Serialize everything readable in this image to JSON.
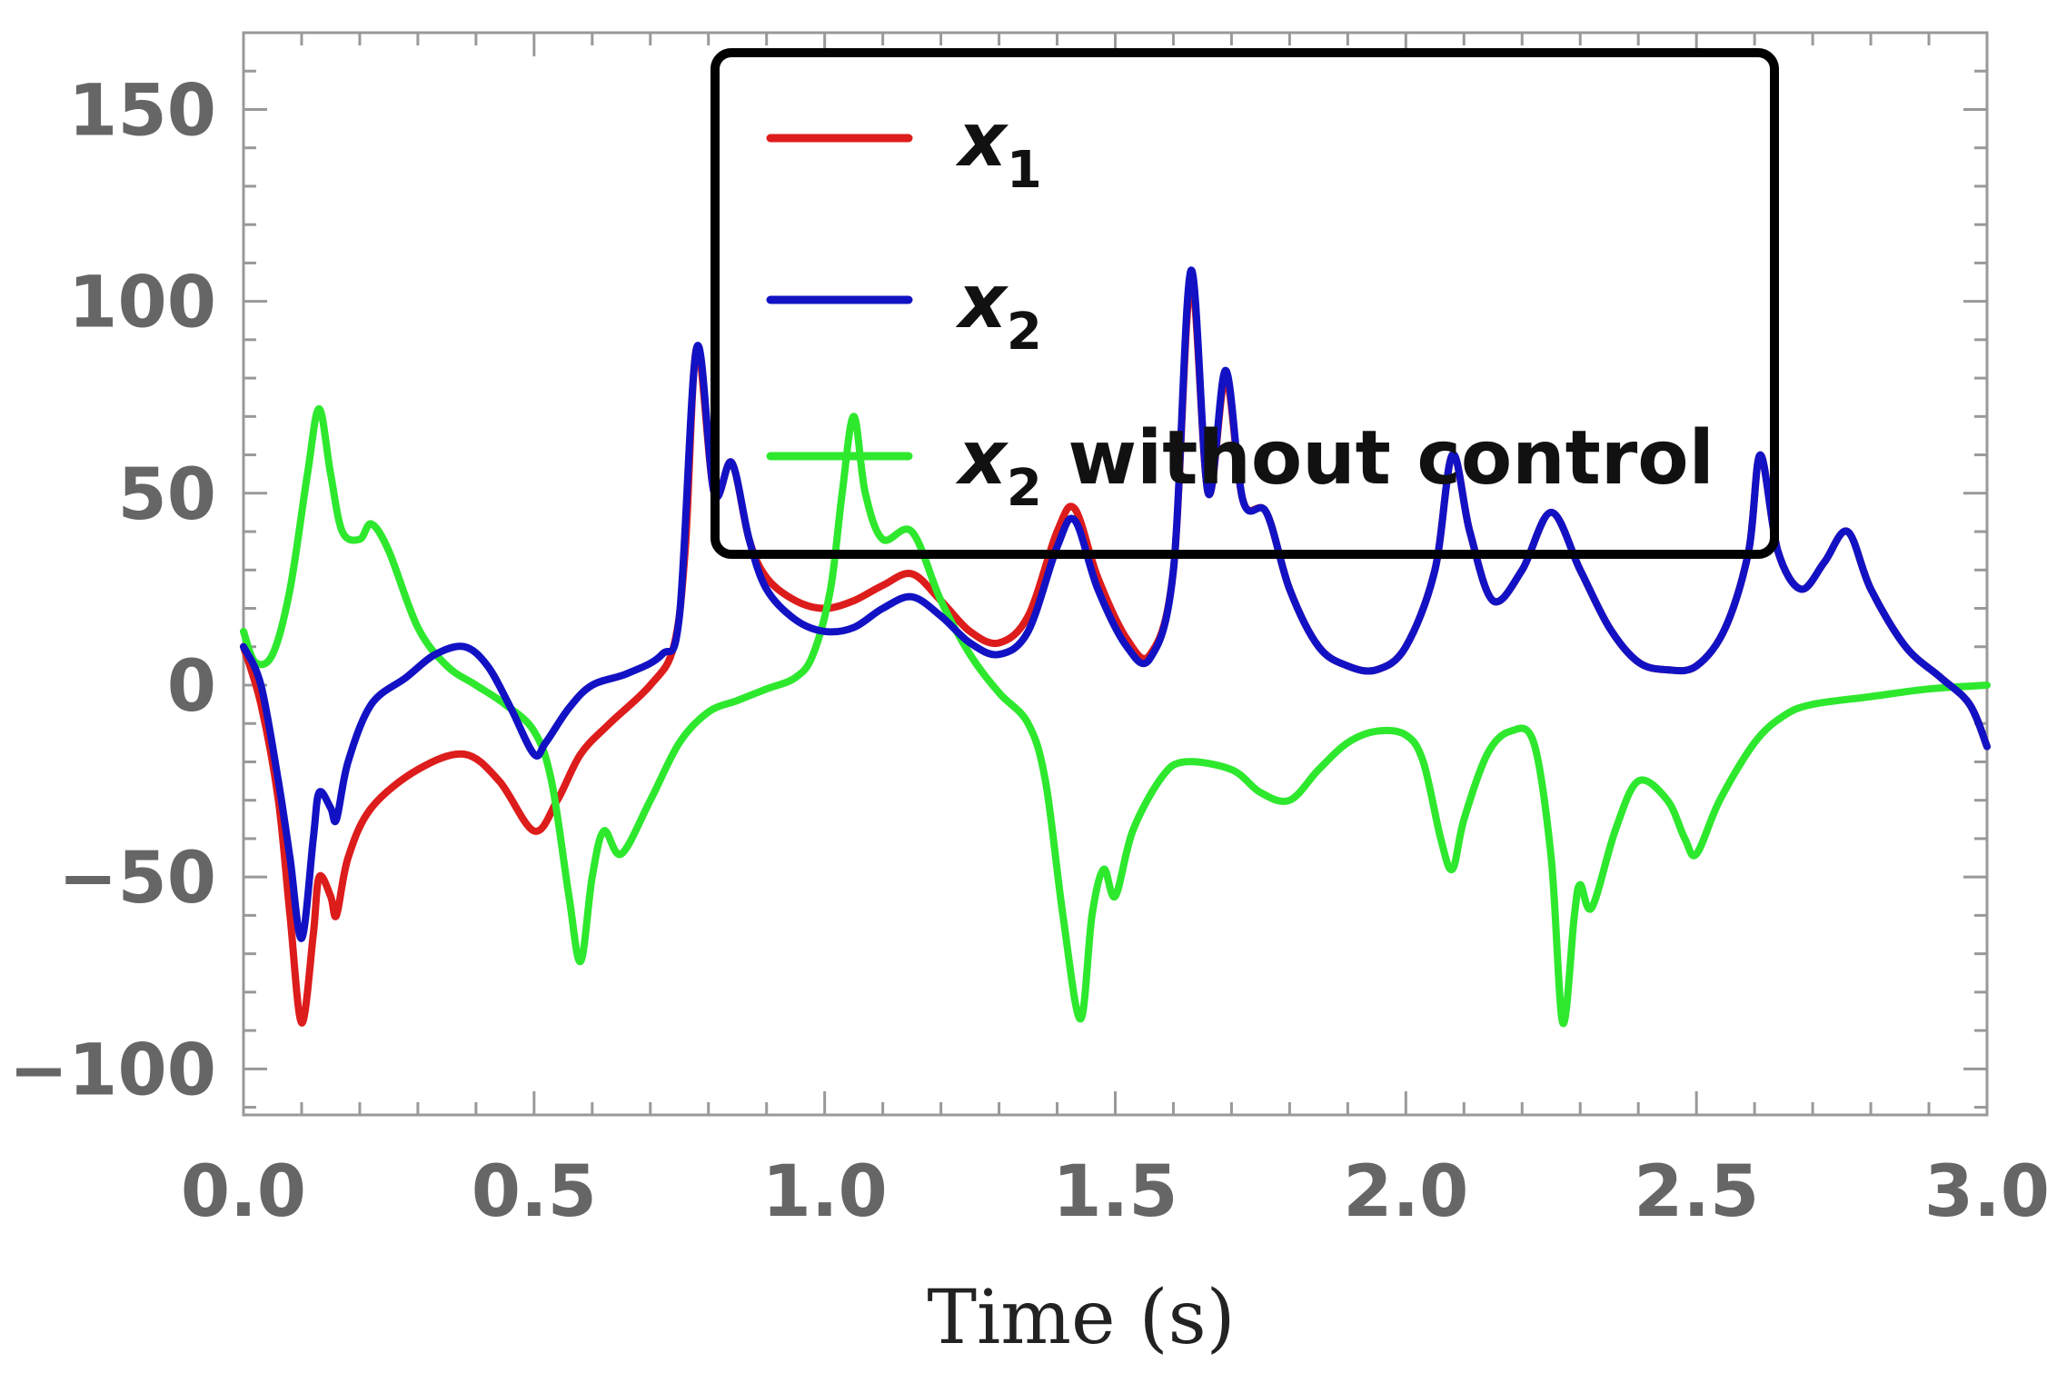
{
  "chart_data": {
    "type": "line",
    "title": "",
    "xlabel": "Time (s)",
    "ylabel": "",
    "xlim": [
      0,
      3
    ],
    "ylim": [
      -112,
      170
    ],
    "x_ticks": [
      0.0,
      0.5,
      1.0,
      1.5,
      2.0,
      2.5,
      3.0
    ],
    "x_tick_labels": [
      "0.0",
      "0.5",
      "1.0",
      "1.5",
      "2.0",
      "2.5",
      "3.0"
    ],
    "y_ticks": [
      -100,
      -50,
      0,
      50,
      100,
      150
    ],
    "y_tick_labels": [
      "−100",
      "−50",
      "0",
      "50",
      "100",
      "150"
    ],
    "legend": {
      "position": "top-right"
    },
    "series": [
      {
        "name": "x1",
        "legend_main": "x",
        "legend_sub": "1",
        "legend_rest": "",
        "color": "#dd1c1c",
        "points": [
          [
            0,
            10
          ],
          [
            0.03,
            -5
          ],
          [
            0.06,
            -30
          ],
          [
            0.08,
            -60
          ],
          [
            0.1,
            -88
          ],
          [
            0.12,
            -65
          ],
          [
            0.13,
            -50
          ],
          [
            0.15,
            -55
          ],
          [
            0.16,
            -60
          ],
          [
            0.18,
            -45
          ],
          [
            0.22,
            -32
          ],
          [
            0.3,
            -22
          ],
          [
            0.38,
            -18
          ],
          [
            0.44,
            -25
          ],
          [
            0.5,
            -38
          ],
          [
            0.54,
            -30
          ],
          [
            0.58,
            -18
          ],
          [
            0.63,
            -10
          ],
          [
            0.7,
            0
          ],
          [
            0.74,
            10
          ],
          [
            0.76,
            35
          ],
          [
            0.78,
            88
          ],
          [
            0.81,
            50
          ],
          [
            0.84,
            58
          ],
          [
            0.87,
            38
          ],
          [
            0.9,
            28
          ],
          [
            0.95,
            22
          ],
          [
            1.0,
            20
          ],
          [
            1.05,
            22
          ],
          [
            1.1,
            26
          ],
          [
            1.15,
            29
          ],
          [
            1.2,
            22
          ],
          [
            1.25,
            14
          ],
          [
            1.3,
            11
          ],
          [
            1.35,
            18
          ],
          [
            1.4,
            40
          ],
          [
            1.43,
            46
          ],
          [
            1.47,
            28
          ],
          [
            1.52,
            12
          ],
          [
            1.56,
            8
          ],
          [
            1.6,
            30
          ],
          [
            1.63,
            105
          ],
          [
            1.66,
            50
          ],
          [
            1.69,
            80
          ],
          [
            1.72,
            48
          ],
          [
            1.76,
            45
          ],
          [
            1.8,
            25
          ],
          [
            1.85,
            10
          ],
          [
            1.9,
            5
          ],
          [
            1.95,
            4
          ],
          [
            2.0,
            10
          ],
          [
            2.05,
            30
          ],
          [
            2.08,
            60
          ],
          [
            2.11,
            40
          ],
          [
            2.15,
            22
          ],
          [
            2.2,
            30
          ],
          [
            2.25,
            45
          ],
          [
            2.3,
            30
          ],
          [
            2.35,
            15
          ],
          [
            2.4,
            6
          ],
          [
            2.45,
            4
          ],
          [
            2.5,
            5
          ],
          [
            2.55,
            15
          ],
          [
            2.59,
            35
          ],
          [
            2.61,
            60
          ],
          [
            2.64,
            35
          ],
          [
            2.68,
            25
          ],
          [
            2.72,
            32
          ],
          [
            2.76,
            40
          ],
          [
            2.8,
            25
          ],
          [
            2.86,
            10
          ],
          [
            2.92,
            2
          ],
          [
            2.97,
            -5
          ],
          [
            3.0,
            -16
          ]
        ]
      },
      {
        "name": "x2",
        "legend_main": "x",
        "legend_sub": "2",
        "legend_rest": "",
        "color": "#1212c4",
        "points": [
          [
            0,
            10
          ],
          [
            0.03,
            0
          ],
          [
            0.06,
            -25
          ],
          [
            0.08,
            -45
          ],
          [
            0.1,
            -66
          ],
          [
            0.12,
            -40
          ],
          [
            0.13,
            -28
          ],
          [
            0.15,
            -32
          ],
          [
            0.16,
            -35
          ],
          [
            0.18,
            -20
          ],
          [
            0.22,
            -5
          ],
          [
            0.28,
            2
          ],
          [
            0.33,
            8
          ],
          [
            0.38,
            10
          ],
          [
            0.42,
            5
          ],
          [
            0.46,
            -6
          ],
          [
            0.5,
            -18
          ],
          [
            0.52,
            -15
          ],
          [
            0.56,
            -6
          ],
          [
            0.6,
            0
          ],
          [
            0.66,
            3
          ],
          [
            0.72,
            8
          ],
          [
            0.75,
            18
          ],
          [
            0.78,
            88
          ],
          [
            0.81,
            50
          ],
          [
            0.84,
            58
          ],
          [
            0.87,
            38
          ],
          [
            0.9,
            25
          ],
          [
            0.95,
            17
          ],
          [
            1.0,
            14
          ],
          [
            1.05,
            15
          ],
          [
            1.1,
            20
          ],
          [
            1.15,
            23
          ],
          [
            1.2,
            18
          ],
          [
            1.25,
            11
          ],
          [
            1.3,
            8
          ],
          [
            1.35,
            14
          ],
          [
            1.4,
            36
          ],
          [
            1.43,
            43
          ],
          [
            1.47,
            25
          ],
          [
            1.52,
            10
          ],
          [
            1.56,
            7
          ],
          [
            1.6,
            30
          ],
          [
            1.63,
            108
          ],
          [
            1.66,
            50
          ],
          [
            1.69,
            82
          ],
          [
            1.72,
            48
          ],
          [
            1.76,
            45
          ],
          [
            1.8,
            25
          ],
          [
            1.85,
            10
          ],
          [
            1.9,
            5
          ],
          [
            1.95,
            4
          ],
          [
            2.0,
            10
          ],
          [
            2.05,
            30
          ],
          [
            2.08,
            60
          ],
          [
            2.11,
            40
          ],
          [
            2.15,
            22
          ],
          [
            2.2,
            30
          ],
          [
            2.25,
            45
          ],
          [
            2.3,
            30
          ],
          [
            2.35,
            15
          ],
          [
            2.4,
            6
          ],
          [
            2.45,
            4
          ],
          [
            2.5,
            5
          ],
          [
            2.55,
            15
          ],
          [
            2.59,
            35
          ],
          [
            2.61,
            60
          ],
          [
            2.64,
            35
          ],
          [
            2.68,
            25
          ],
          [
            2.72,
            32
          ],
          [
            2.76,
            40
          ],
          [
            2.8,
            25
          ],
          [
            2.86,
            10
          ],
          [
            2.92,
            2
          ],
          [
            2.97,
            -5
          ],
          [
            3.0,
            -16
          ]
        ]
      },
      {
        "name": "x2 without control",
        "legend_main": "x",
        "legend_sub": "2",
        "legend_rest": " without control",
        "color": "#2ee82e",
        "points": [
          [
            0,
            14
          ],
          [
            0.02,
            6
          ],
          [
            0.05,
            8
          ],
          [
            0.08,
            25
          ],
          [
            0.11,
            55
          ],
          [
            0.13,
            72
          ],
          [
            0.15,
            55
          ],
          [
            0.17,
            40
          ],
          [
            0.2,
            38
          ],
          [
            0.22,
            42
          ],
          [
            0.25,
            35
          ],
          [
            0.3,
            15
          ],
          [
            0.35,
            5
          ],
          [
            0.4,
            0
          ],
          [
            0.45,
            -5
          ],
          [
            0.5,
            -12
          ],
          [
            0.53,
            -25
          ],
          [
            0.56,
            -55
          ],
          [
            0.58,
            -72
          ],
          [
            0.6,
            -50
          ],
          [
            0.62,
            -38
          ],
          [
            0.65,
            -44
          ],
          [
            0.7,
            -30
          ],
          [
            0.75,
            -15
          ],
          [
            0.8,
            -7
          ],
          [
            0.85,
            -4
          ],
          [
            0.9,
            -1
          ],
          [
            0.95,
            2
          ],
          [
            0.98,
            8
          ],
          [
            1.01,
            25
          ],
          [
            1.03,
            50
          ],
          [
            1.05,
            70
          ],
          [
            1.07,
            50
          ],
          [
            1.1,
            38
          ],
          [
            1.15,
            40
          ],
          [
            1.2,
            22
          ],
          [
            1.25,
            8
          ],
          [
            1.3,
            -2
          ],
          [
            1.35,
            -10
          ],
          [
            1.38,
            -25
          ],
          [
            1.41,
            -60
          ],
          [
            1.44,
            -87
          ],
          [
            1.46,
            -60
          ],
          [
            1.48,
            -48
          ],
          [
            1.5,
            -55
          ],
          [
            1.53,
            -38
          ],
          [
            1.58,
            -24
          ],
          [
            1.62,
            -20
          ],
          [
            1.7,
            -22
          ],
          [
            1.75,
            -28
          ],
          [
            1.8,
            -30
          ],
          [
            1.85,
            -22
          ],
          [
            1.9,
            -15
          ],
          [
            1.95,
            -12
          ],
          [
            2.0,
            -13
          ],
          [
            2.03,
            -20
          ],
          [
            2.06,
            -40
          ],
          [
            2.08,
            -48
          ],
          [
            2.1,
            -35
          ],
          [
            2.14,
            -18
          ],
          [
            2.18,
            -12
          ],
          [
            2.22,
            -15
          ],
          [
            2.25,
            -45
          ],
          [
            2.27,
            -88
          ],
          [
            2.29,
            -60
          ],
          [
            2.3,
            -52
          ],
          [
            2.32,
            -58
          ],
          [
            2.36,
            -38
          ],
          [
            2.4,
            -25
          ],
          [
            2.45,
            -30
          ],
          [
            2.48,
            -40
          ],
          [
            2.5,
            -44
          ],
          [
            2.54,
            -30
          ],
          [
            2.6,
            -15
          ],
          [
            2.65,
            -8
          ],
          [
            2.7,
            -5
          ],
          [
            2.8,
            -3
          ],
          [
            2.9,
            -1
          ],
          [
            3.0,
            0
          ]
        ]
      }
    ]
  }
}
